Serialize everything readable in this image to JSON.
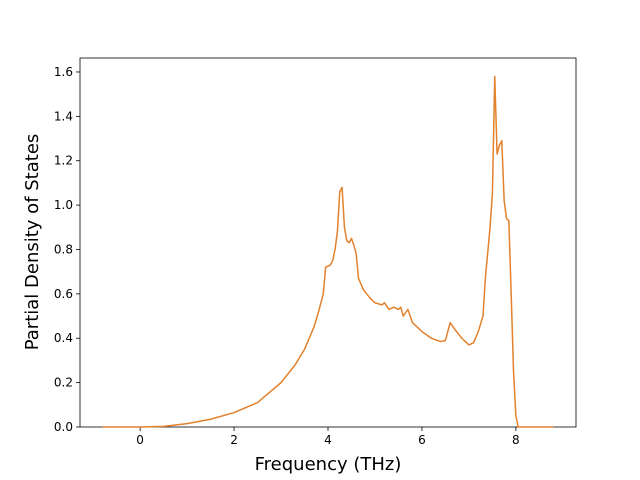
{
  "chart_data": {
    "type": "line",
    "xlabel": "Frequency (THz)",
    "ylabel": "Partial Density of States",
    "x": [
      -0.8,
      0,
      0.5,
      1,
      1.5,
      2,
      2.5,
      3,
      3.3,
      3.5,
      3.6,
      3.7,
      3.8,
      3.9,
      3.95,
      4.05,
      4.1,
      4.15,
      4.2,
      4.25,
      4.3,
      4.35,
      4.4,
      4.45,
      4.5,
      4.55,
      4.6,
      4.65,
      4.75,
      4.9,
      5.0,
      5.15,
      5.2,
      5.3,
      5.4,
      5.5,
      5.55,
      5.6,
      5.7,
      5.8,
      6.0,
      6.2,
      6.4,
      6.5,
      6.6,
      6.7,
      6.85,
      7.0,
      7.1,
      7.2,
      7.3,
      7.35,
      7.45,
      7.5,
      7.55,
      7.6,
      7.65,
      7.7,
      7.75,
      7.8,
      7.85,
      7.9,
      7.95,
      8.0,
      8.05,
      8.8
    ],
    "series": [
      {
        "color": "#e3812c",
        "values": [
          0,
          0,
          0.003,
          0.015,
          0.035,
          0.065,
          0.11,
          0.2,
          0.28,
          0.35,
          0.4,
          0.45,
          0.52,
          0.6,
          0.72,
          0.73,
          0.75,
          0.8,
          0.88,
          1.06,
          1.08,
          0.9,
          0.84,
          0.83,
          0.85,
          0.82,
          0.78,
          0.67,
          0.62,
          0.58,
          0.56,
          0.55,
          0.56,
          0.53,
          0.54,
          0.53,
          0.54,
          0.5,
          0.53,
          0.47,
          0.43,
          0.4,
          0.385,
          0.39,
          0.47,
          0.44,
          0.4,
          0.37,
          0.38,
          0.43,
          0.5,
          0.67,
          0.9,
          1.05,
          1.58,
          1.23,
          1.27,
          1.29,
          1.02,
          0.94,
          0.93,
          0.6,
          0.25,
          0.05,
          0,
          0
        ]
      }
    ],
    "xlim": [
      -1.28,
      9.28
    ],
    "ylim": [
      0,
      1.663
    ],
    "xticks": [
      0,
      2,
      4,
      6,
      8
    ],
    "yticks": [
      {
        "value": 0,
        "label": "0.0"
      },
      {
        "value": 0.2,
        "label": "0.2"
      },
      {
        "value": 0.4,
        "label": "0.4"
      },
      {
        "value": 0.6,
        "label": "0.6"
      },
      {
        "value": 0.8,
        "label": "0.8"
      },
      {
        "value": 1.0,
        "label": "1.0"
      },
      {
        "value": 1.2,
        "label": "1.2"
      },
      {
        "value": 1.4,
        "label": "1.4"
      },
      {
        "value": 1.6,
        "label": "1.6"
      }
    ]
  }
}
